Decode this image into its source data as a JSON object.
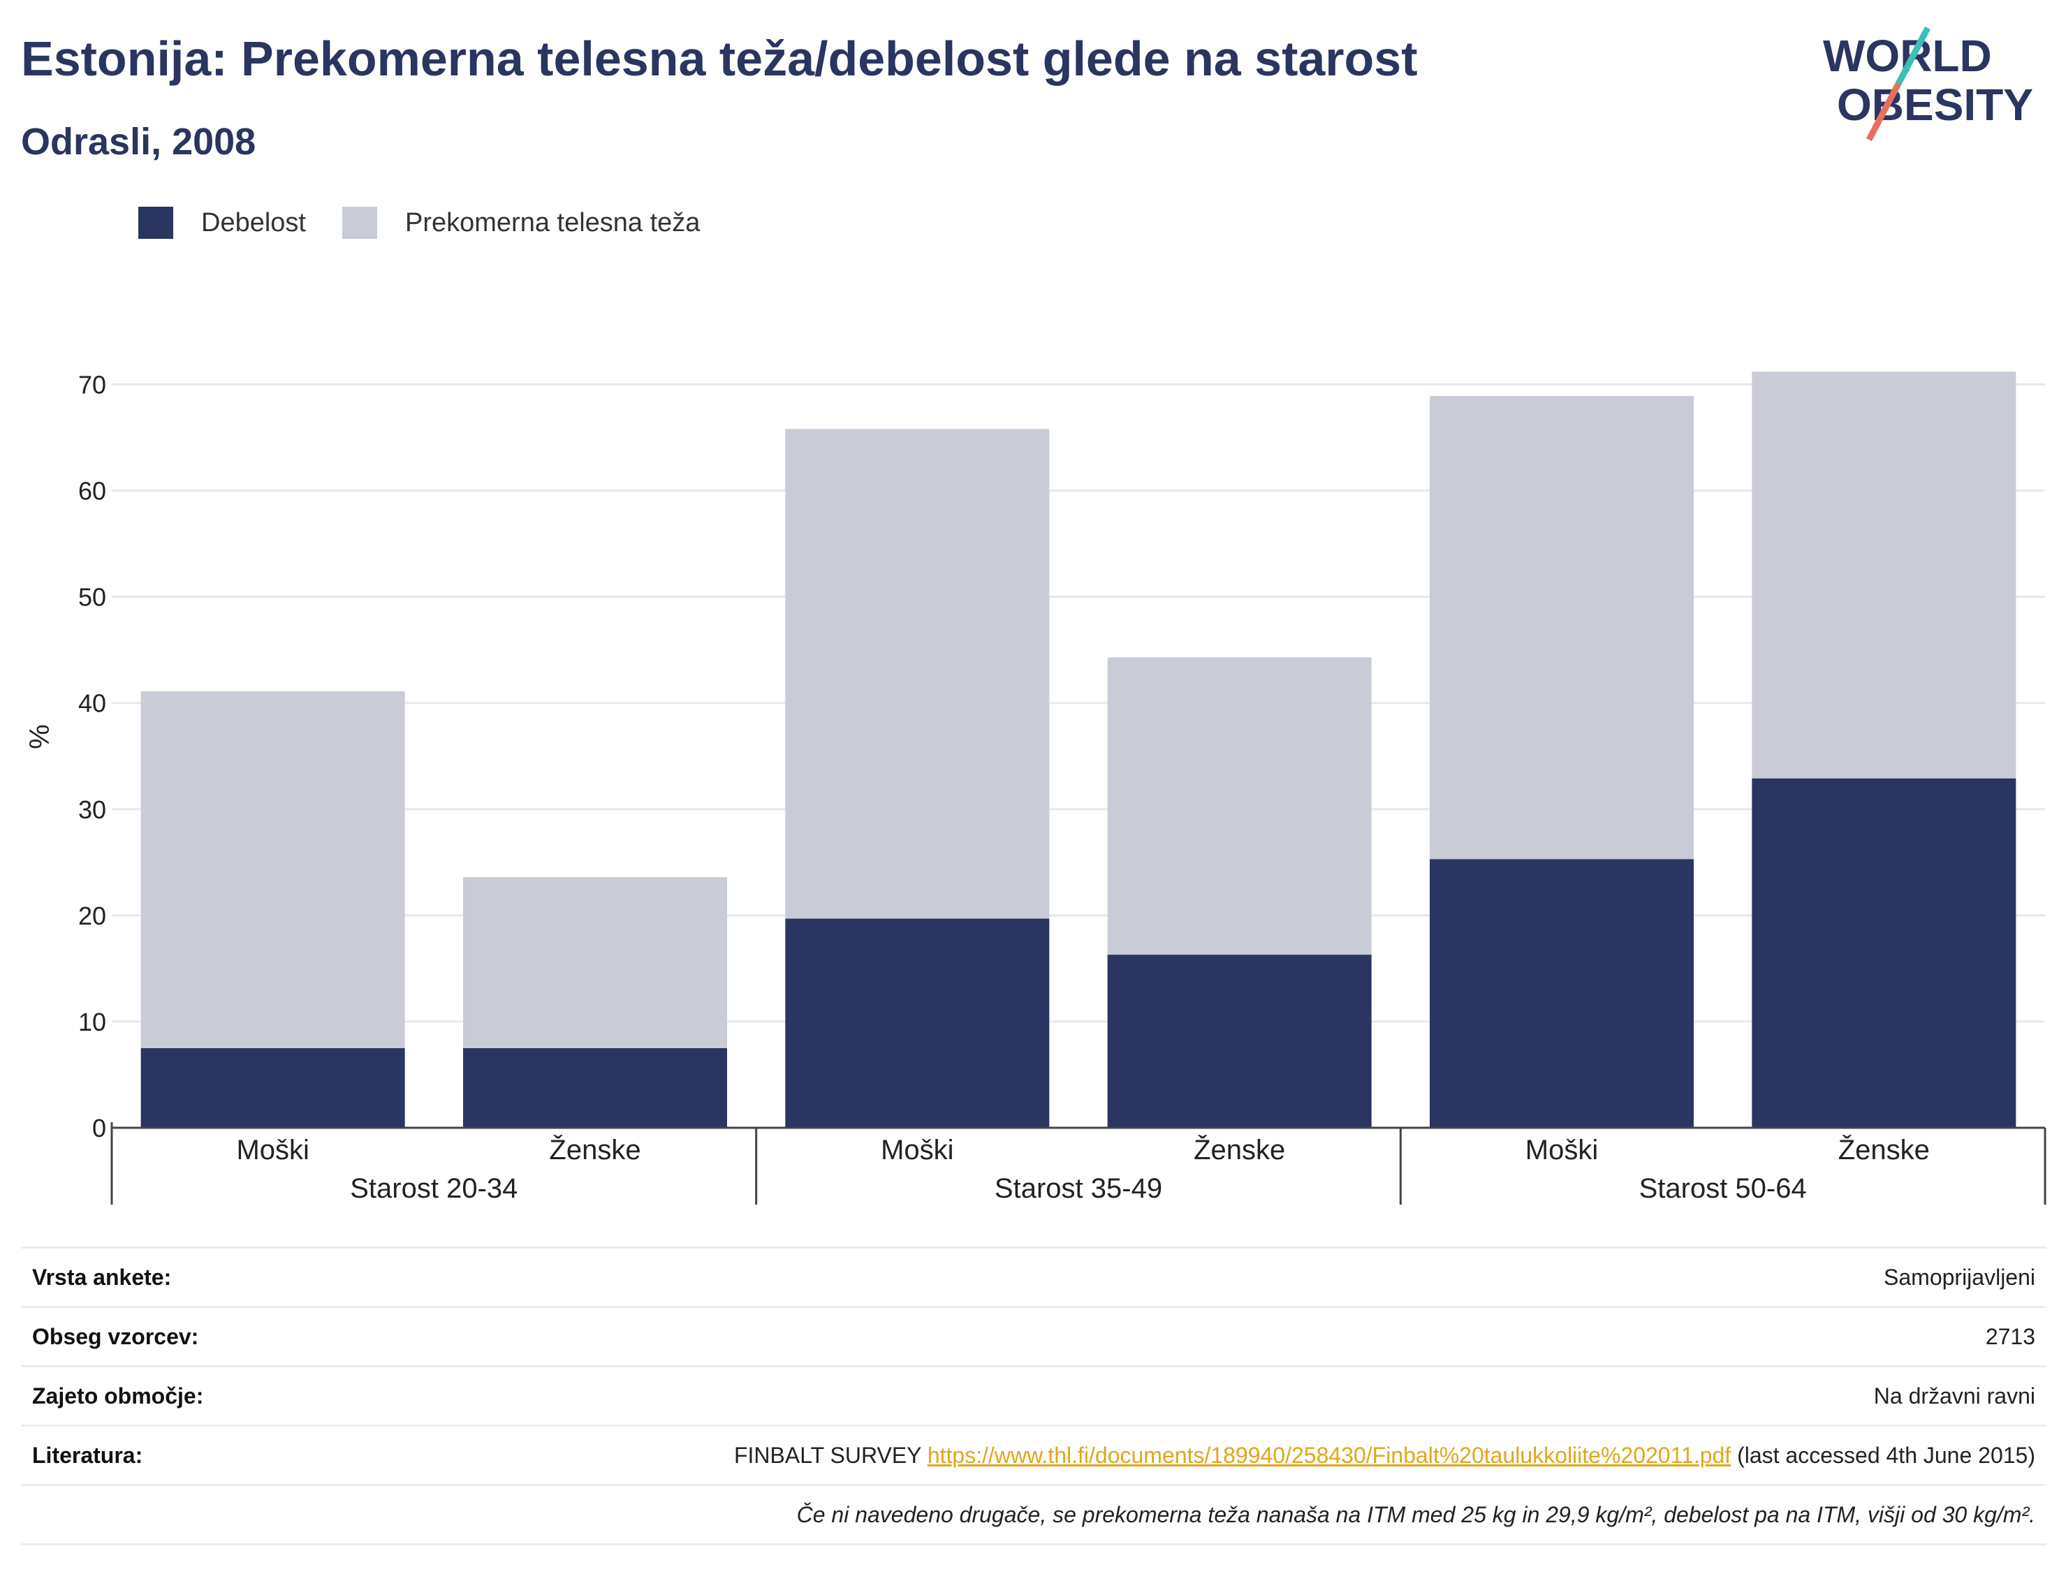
{
  "title": "Estonija: Prekomerna telesna teža/debelost glede na starost",
  "subtitle": "Odrasli, 2008",
  "logo": {
    "line1": "WORLD",
    "line2": "OBESITY"
  },
  "colors": {
    "obesity": "#2a3561",
    "overweight": "#c9cbd7",
    "title": "#2a3560",
    "link": "#e2a619"
  },
  "legend": [
    {
      "label": "Debelost",
      "color": "#2a3561"
    },
    {
      "label": "Prekomerna telesna teža",
      "color": "#c9cbd7"
    }
  ],
  "chart_data": {
    "type": "bar",
    "stacked": true,
    "ylabel": "%",
    "ylim": [
      0,
      72
    ],
    "yticks": [
      0,
      10,
      20,
      30,
      40,
      50,
      60,
      70
    ],
    "grid": true,
    "legend_position": "top-left",
    "groups": [
      "Starost 20-34",
      "Starost 35-49",
      "Starost 50-64"
    ],
    "categories": [
      "Moški",
      "Ženske",
      "Moški",
      "Ženske",
      "Moški",
      "Ženske"
    ],
    "series": [
      {
        "name": "Debelost",
        "values": [
          7.5,
          7.5,
          19.7,
          16.3,
          25.3,
          32.9
        ]
      },
      {
        "name": "Prekomerna telesna teža",
        "values": [
          33.6,
          16.1,
          46.1,
          28.0,
          43.6,
          38.3
        ]
      }
    ]
  },
  "info": [
    {
      "label": "Vrsta ankete:",
      "value": "Samoprijavljeni"
    },
    {
      "label": "Obseg vzorcev:",
      "value": "2713"
    },
    {
      "label": "Zajeto območje:",
      "value": "Na državni ravni"
    },
    {
      "label": "Literatura:",
      "value_prefix": "FINBALT SURVEY ",
      "link": "https://www.thl.fi/documents/189940/258430/Finbalt%20taulukkoliite%202011.pdf",
      "value_suffix": " (last accessed 4th June 2015)"
    }
  ],
  "note": "Če ni navedeno drugače, se prekomerna teža nanaša na ITM med 25 kg in 29,9 kg/m², debelost pa na ITM, višji od 30 kg/m²."
}
